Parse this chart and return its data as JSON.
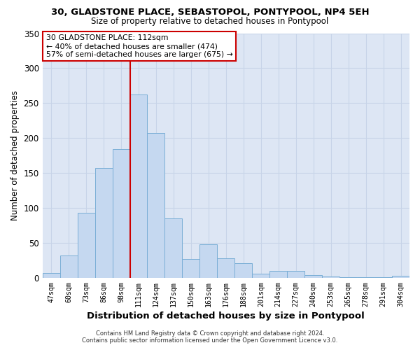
{
  "title": "30, GLADSTONE PLACE, SEBASTOPOL, PONTYPOOL, NP4 5EH",
  "subtitle": "Size of property relative to detached houses in Pontypool",
  "xlabel": "Distribution of detached houses by size in Pontypool",
  "ylabel": "Number of detached properties",
  "categories": [
    "47sqm",
    "60sqm",
    "73sqm",
    "86sqm",
    "98sqm",
    "111sqm",
    "124sqm",
    "137sqm",
    "150sqm",
    "163sqm",
    "176sqm",
    "188sqm",
    "201sqm",
    "214sqm",
    "227sqm",
    "240sqm",
    "253sqm",
    "265sqm",
    "278sqm",
    "291sqm",
    "304sqm"
  ],
  "values": [
    7,
    32,
    93,
    157,
    184,
    262,
    207,
    85,
    27,
    48,
    28,
    21,
    6,
    10,
    10,
    4,
    2,
    1,
    1,
    1,
    3
  ],
  "bar_color": "#c5d8f0",
  "bar_edge_color": "#7aaed6",
  "vline_idx": 5,
  "vline_color": "#cc0000",
  "annotation_text": "30 GLADSTONE PLACE: 112sqm\n← 40% of detached houses are smaller (474)\n57% of semi-detached houses are larger (675) →",
  "annotation_box_color": "#ffffff",
  "annotation_box_edge": "#cc0000",
  "ylim": [
    0,
    350
  ],
  "yticks": [
    0,
    50,
    100,
    150,
    200,
    250,
    300,
    350
  ],
  "grid_color": "#c8d4e8",
  "background_color": "#dde6f4",
  "footer_line1": "Contains HM Land Registry data © Crown copyright and database right 2024.",
  "footer_line2": "Contains public sector information licensed under the Open Government Licence v3.0."
}
